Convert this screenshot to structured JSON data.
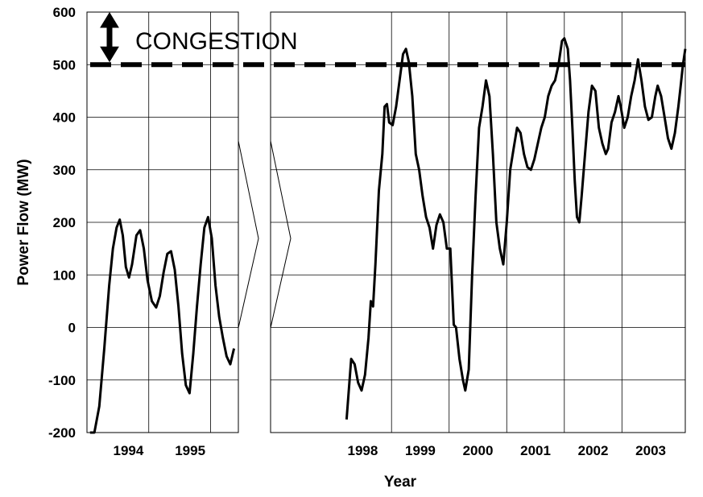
{
  "chart_data": {
    "type": "line",
    "xlabel": "Year",
    "ylabel": "Power Flow (MW)",
    "ylim": [
      -200,
      600
    ],
    "yticks": [
      -200,
      -100,
      0,
      100,
      200,
      300,
      400,
      500,
      600
    ],
    "grid": true,
    "annotation": {
      "text": "CONGESTION",
      "value": 500
    },
    "panels": [
      {
        "name": "left",
        "xlim": [
          1993.5,
          1995.95
        ],
        "xticks": [
          {
            "label": "1994",
            "x": 1994.17
          },
          {
            "label": "1995",
            "x": 1995.17
          }
        ],
        "vgrid": [
          1994.5,
          1995.5
        ],
        "series": [
          {
            "style": "average",
            "points": [
              [
                1993.55,
                -200
              ],
              [
                1993.62,
                -200
              ],
              [
                1993.7,
                -150
              ],
              [
                1993.78,
                -40
              ],
              [
                1993.86,
                80
              ],
              [
                1993.92,
                150
              ],
              [
                1993.98,
                190
              ],
              [
                1994.03,
                205
              ],
              [
                1994.08,
                175
              ],
              [
                1994.13,
                115
              ],
              [
                1994.18,
                95
              ],
              [
                1994.23,
                120
              ],
              [
                1994.3,
                175
              ],
              [
                1994.36,
                185
              ],
              [
                1994.42,
                150
              ],
              [
                1994.48,
                90
              ],
              [
                1994.55,
                50
              ],
              [
                1994.62,
                38
              ],
              [
                1994.68,
                60
              ],
              [
                1994.74,
                105
              ],
              [
                1994.8,
                140
              ],
              [
                1994.86,
                145
              ],
              [
                1994.92,
                110
              ],
              [
                1994.98,
                40
              ],
              [
                1995.04,
                -50
              ],
              [
                1995.1,
                -110
              ],
              [
                1995.16,
                -125
              ],
              [
                1995.22,
                -50
              ],
              [
                1995.28,
                40
              ],
              [
                1995.34,
                120
              ],
              [
                1995.4,
                190
              ],
              [
                1995.46,
                210
              ],
              [
                1995.52,
                170
              ],
              [
                1995.58,
                80
              ],
              [
                1995.64,
                20
              ],
              [
                1995.7,
                -20
              ],
              [
                1995.76,
                -55
              ],
              [
                1995.82,
                -70
              ],
              [
                1995.88,
                -40
              ]
            ]
          }
        ]
      },
      {
        "name": "right",
        "xlim": [
          1996.4,
          2003.6
        ],
        "xticks": [
          {
            "label": "1998",
            "x": 1998.0
          },
          {
            "label": "1999",
            "x": 1999.0
          },
          {
            "label": "2000",
            "x": 2000.0
          },
          {
            "label": "2001",
            "x": 2001.0
          },
          {
            "label": "2002",
            "x": 2002.0
          },
          {
            "label": "2003",
            "x": 2003.0
          }
        ],
        "vgrid": [
          1998.5,
          1999.5,
          2000.5,
          2001.5,
          2002.5
        ],
        "series": [
          {
            "style": "average",
            "points": [
              [
                1997.72,
                -175
              ],
              [
                1997.8,
                -60
              ],
              [
                1997.86,
                -70
              ],
              [
                1997.92,
                -105
              ],
              [
                1997.98,
                -120
              ],
              [
                1998.04,
                -90
              ],
              [
                1998.1,
                -20
              ],
              [
                1998.14,
                50
              ],
              [
                1998.18,
                40
              ],
              [
                1998.22,
                120
              ],
              [
                1998.28,
                260
              ],
              [
                1998.34,
                330
              ],
              [
                1998.38,
                420
              ],
              [
                1998.42,
                425
              ],
              [
                1998.46,
                390
              ],
              [
                1998.52,
                385
              ],
              [
                1998.58,
                420
              ],
              [
                1998.64,
                470
              ],
              [
                1998.7,
                520
              ],
              [
                1998.75,
                530
              ],
              [
                1998.8,
                505
              ],
              [
                1998.86,
                440
              ],
              [
                1998.92,
                330
              ],
              [
                1998.98,
                300
              ],
              [
                1999.04,
                250
              ],
              [
                1999.1,
                210
              ],
              [
                1999.16,
                190
              ],
              [
                1999.22,
                150
              ],
              [
                1999.28,
                195
              ],
              [
                1999.34,
                215
              ],
              [
                1999.4,
                200
              ],
              [
                1999.46,
                150
              ],
              [
                1999.52,
                150
              ],
              [
                1999.58,
                5
              ],
              [
                1999.62,
                0
              ],
              [
                1999.68,
                -60
              ],
              [
                1999.74,
                -100
              ],
              [
                1999.78,
                -120
              ],
              [
                1999.84,
                -80
              ],
              [
                1999.9,
                100
              ],
              [
                1999.96,
                250
              ],
              [
                2000.02,
                380
              ],
              [
                2000.08,
                420
              ],
              [
                2000.14,
                470
              ],
              [
                2000.2,
                440
              ],
              [
                2000.26,
                330
              ],
              [
                2000.32,
                200
              ],
              [
                2000.38,
                150
              ],
              [
                2000.44,
                120
              ],
              [
                2000.5,
                200
              ],
              [
                2000.56,
                300
              ],
              [
                2000.62,
                340
              ],
              [
                2000.68,
                380
              ],
              [
                2000.74,
                370
              ],
              [
                2000.8,
                330
              ],
              [
                2000.86,
                305
              ],
              [
                2000.92,
                300
              ],
              [
                2000.98,
                320
              ],
              [
                2001.04,
                350
              ],
              [
                2001.1,
                380
              ],
              [
                2001.16,
                400
              ],
              [
                2001.22,
                440
              ],
              [
                2001.28,
                460
              ],
              [
                2001.34,
                470
              ],
              [
                2001.4,
                500
              ],
              [
                2001.46,
                545
              ],
              [
                2001.5,
                550
              ],
              [
                2001.56,
                530
              ],
              [
                2001.6,
                470
              ],
              [
                2001.64,
                380
              ],
              [
                2001.68,
                280
              ],
              [
                2001.72,
                210
              ],
              [
                2001.76,
                200
              ],
              [
                2001.8,
                250
              ],
              [
                2001.86,
                330
              ],
              [
                2001.92,
                410
              ],
              [
                2001.98,
                460
              ],
              [
                2002.04,
                450
              ],
              [
                2002.1,
                380
              ],
              [
                2002.16,
                350
              ],
              [
                2002.22,
                330
              ],
              [
                2002.26,
                340
              ],
              [
                2002.32,
                390
              ],
              [
                2002.38,
                410
              ],
              [
                2002.44,
                440
              ],
              [
                2002.48,
                420
              ],
              [
                2002.54,
                380
              ],
              [
                2002.6,
                400
              ],
              [
                2002.66,
                440
              ],
              [
                2002.72,
                470
              ],
              [
                2002.78,
                510
              ],
              [
                2002.84,
                470
              ],
              [
                2002.9,
                420
              ],
              [
                2002.96,
                395
              ],
              [
                2003.02,
                400
              ],
              [
                2003.08,
                440
              ],
              [
                2003.12,
                460
              ],
              [
                2003.18,
                440
              ],
              [
                2003.24,
                400
              ],
              [
                2003.3,
                360
              ],
              [
                2003.36,
                340
              ],
              [
                2003.42,
                370
              ],
              [
                2003.48,
                420
              ],
              [
                2003.52,
                460
              ],
              [
                2003.56,
                500
              ],
              [
                2003.6,
                530
              ]
            ]
          }
        ]
      }
    ]
  }
}
